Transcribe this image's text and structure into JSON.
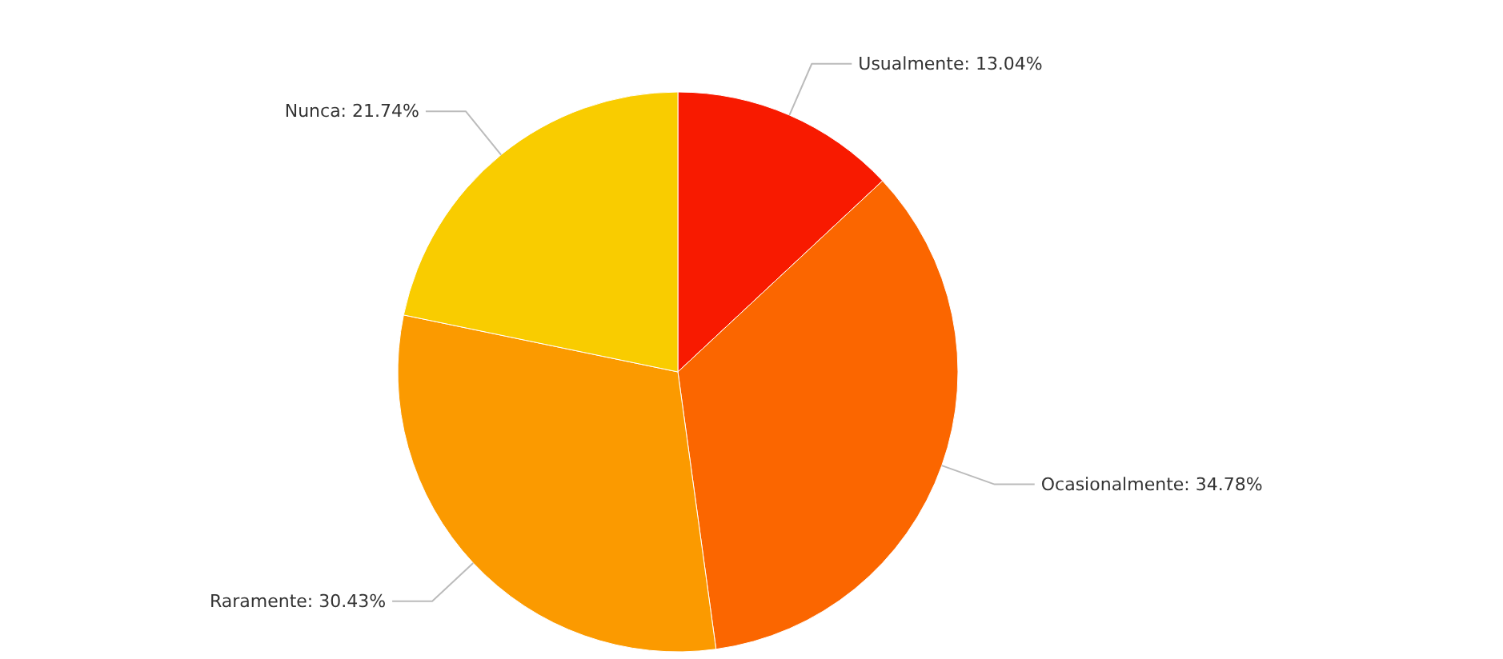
{
  "chart_data": {
    "type": "pie",
    "categories": [
      "Usualmente",
      "Ocasionalmente",
      "Raramente",
      "Nunca"
    ],
    "values": [
      13.04,
      34.78,
      30.43,
      21.74
    ],
    "value_labels": [
      "13.04%",
      "34.78%",
      "30.43%",
      "21.74%"
    ],
    "colors": [
      "#f81a00",
      "#fb6600",
      "#fb9a00",
      "#f9cc00"
    ],
    "legend": false
  }
}
